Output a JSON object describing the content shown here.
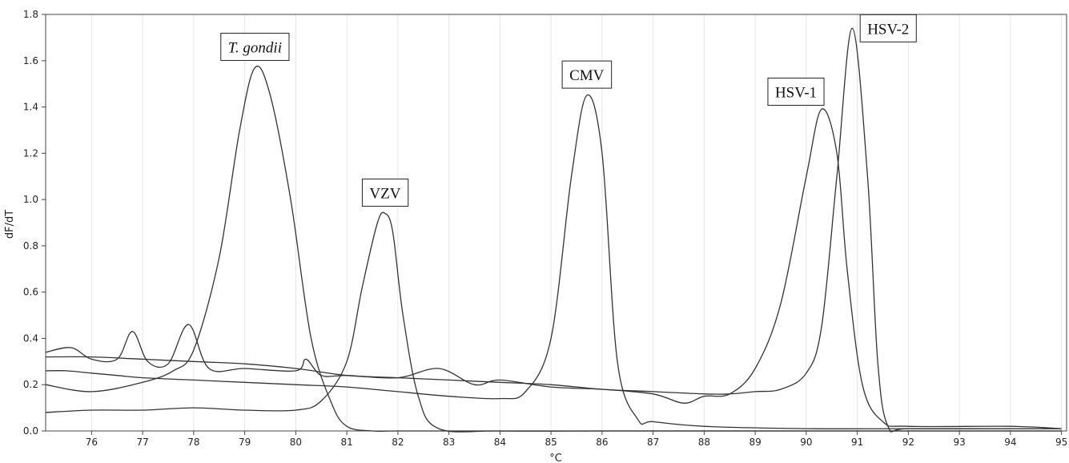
{
  "chart_data": {
    "type": "line",
    "xlabel": "°C",
    "ylabel": "dF/dT",
    "xlim": [
      75.1,
      95.1
    ],
    "ylim": [
      0,
      1.8
    ],
    "xticks": [
      76,
      77,
      78,
      79,
      80,
      81,
      82,
      83,
      84,
      85,
      86,
      87,
      88,
      89,
      90,
      91,
      92,
      93,
      94,
      95
    ],
    "yticks": [
      "0.0",
      "0.2",
      "0.4",
      "0.6",
      "0.8",
      "1.0",
      "1.2",
      "1.4",
      "1.6",
      "1.8"
    ],
    "grid": "vertical",
    "annotations": [
      {
        "text": "T. gondii",
        "italic": true,
        "x": 79.2,
        "y": 1.57
      },
      {
        "text": "VZV",
        "italic": false,
        "x": 81.75,
        "y": 0.94
      },
      {
        "text": "CMV",
        "italic": false,
        "x": 85.7,
        "y": 1.45
      },
      {
        "text": "HSV-1",
        "italic": false,
        "x": 90.3,
        "y": 1.39
      },
      {
        "text": "HSV-2",
        "italic": false,
        "x": 90.9,
        "y": 1.74
      }
    ],
    "series": [
      {
        "x": [
          75.1,
          76,
          77,
          77.6,
          78,
          78.5,
          78.9,
          79.2,
          79.5,
          79.9,
          80.3,
          80.7,
          81.0,
          81.5,
          82,
          84,
          86,
          88,
          90,
          92,
          95
        ],
        "y": [
          0.2,
          0.17,
          0.21,
          0.26,
          0.35,
          0.75,
          1.3,
          1.57,
          1.45,
          1.0,
          0.4,
          0.12,
          0.02,
          0.0,
          0.0,
          0.0,
          0.0,
          0.0,
          0.0,
          0.0,
          0.0
        ]
      },
      {
        "x": [
          75.1,
          76,
          77,
          78,
          79,
          80,
          80.5,
          81,
          81.3,
          81.6,
          81.75,
          81.9,
          82.1,
          82.4,
          82.8,
          84,
          86,
          88,
          90,
          92,
          95
        ],
        "y": [
          0.08,
          0.09,
          0.09,
          0.1,
          0.09,
          0.09,
          0.13,
          0.3,
          0.62,
          0.9,
          0.94,
          0.86,
          0.5,
          0.15,
          0.01,
          0.0,
          0.0,
          0.0,
          0.0,
          0.0,
          0.0
        ]
      },
      {
        "x": [
          75.1,
          75.5,
          76,
          76.5,
          77,
          78,
          79,
          80,
          81,
          82,
          83,
          84,
          84.5,
          85,
          85.4,
          85.7,
          86,
          86.3,
          86.7,
          87,
          88,
          90,
          92,
          95
        ],
        "y": [
          0.26,
          0.26,
          0.25,
          0.24,
          0.23,
          0.22,
          0.21,
          0.2,
          0.19,
          0.17,
          0.15,
          0.14,
          0.17,
          0.4,
          1.1,
          1.45,
          1.2,
          0.3,
          0.05,
          0.04,
          0.02,
          0.01,
          0.01,
          0.01
        ]
      },
      {
        "x": [
          75.1,
          75.6,
          76,
          76.5,
          76.8,
          77.1,
          77.5,
          77.9,
          78.3,
          79,
          80,
          80.2,
          80.5,
          81,
          82,
          82.8,
          83.5,
          84,
          85,
          86,
          87,
          87.6,
          88,
          88.5,
          89,
          89.5,
          90,
          90.3,
          90.6,
          90.8,
          91.1,
          91.5,
          92,
          94,
          95
        ],
        "y": [
          0.34,
          0.36,
          0.31,
          0.31,
          0.43,
          0.3,
          0.29,
          0.46,
          0.27,
          0.27,
          0.26,
          0.31,
          0.24,
          0.24,
          0.23,
          0.27,
          0.2,
          0.22,
          0.19,
          0.18,
          0.16,
          0.12,
          0.15,
          0.16,
          0.27,
          0.55,
          1.1,
          1.39,
          1.2,
          0.7,
          0.2,
          0.04,
          0.02,
          0.02,
          0.01
        ]
      },
      {
        "x": [
          75.1,
          76,
          77,
          78,
          79,
          80,
          81,
          82,
          83,
          84,
          85,
          86,
          87,
          88,
          88.5,
          89,
          89.5,
          90,
          90.3,
          90.6,
          90.9,
          91.2,
          91.4,
          91.6,
          92,
          94,
          95
        ],
        "y": [
          0.32,
          0.32,
          0.31,
          0.3,
          0.29,
          0.27,
          0.24,
          0.23,
          0.22,
          0.21,
          0.2,
          0.18,
          0.17,
          0.16,
          0.16,
          0.17,
          0.18,
          0.25,
          0.45,
          1.1,
          1.74,
          1.1,
          0.3,
          0.02,
          0.01,
          0.01,
          0.01
        ]
      }
    ]
  }
}
